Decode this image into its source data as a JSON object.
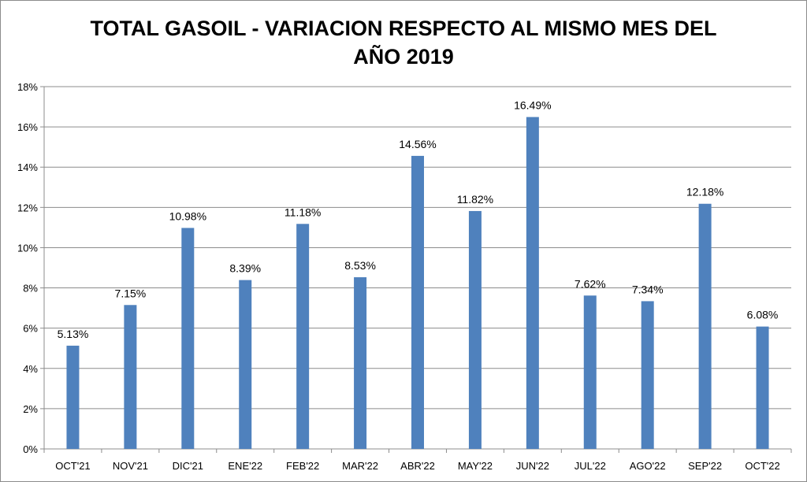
{
  "chart_data": {
    "type": "bar",
    "title_lines": [
      "TOTAL GASOIL - VARIACION RESPECTO AL MISMO MES DEL",
      "AÑO 2019"
    ],
    "xlabel": "",
    "ylabel": "",
    "categories": [
      "OCT'21",
      "NOV'21",
      "DIC'21",
      "ENE'22",
      "FEB'22",
      "MAR'22",
      "ABR'22",
      "MAY'22",
      "JUN'22",
      "JUL'22",
      "AGO'22",
      "SEP'22",
      "OCT'22"
    ],
    "values": [
      5.13,
      7.15,
      10.98,
      8.39,
      11.18,
      8.53,
      14.56,
      11.82,
      16.49,
      7.62,
      7.34,
      12.18,
      6.08
    ],
    "data_labels": [
      "5.13%",
      "7.15%",
      "10.98%",
      "8.39%",
      "11.18%",
      "8.53%",
      "14.56%",
      "11.82%",
      "16.49%",
      "7.62%",
      "7.34%",
      "12.18%",
      "6.08%"
    ],
    "y_ticks": [
      0,
      2,
      4,
      6,
      8,
      10,
      12,
      14,
      16,
      18
    ],
    "y_tick_labels": [
      "0%",
      "2%",
      "4%",
      "6%",
      "8%",
      "10%",
      "12%",
      "14%",
      "16%",
      "18%"
    ],
    "ylim": [
      0,
      18
    ],
    "grid": true,
    "legend": "none",
    "colors": {
      "bar": "#4f81bd",
      "grid": "#8c8c8c",
      "axis": "#8c8c8c"
    }
  }
}
